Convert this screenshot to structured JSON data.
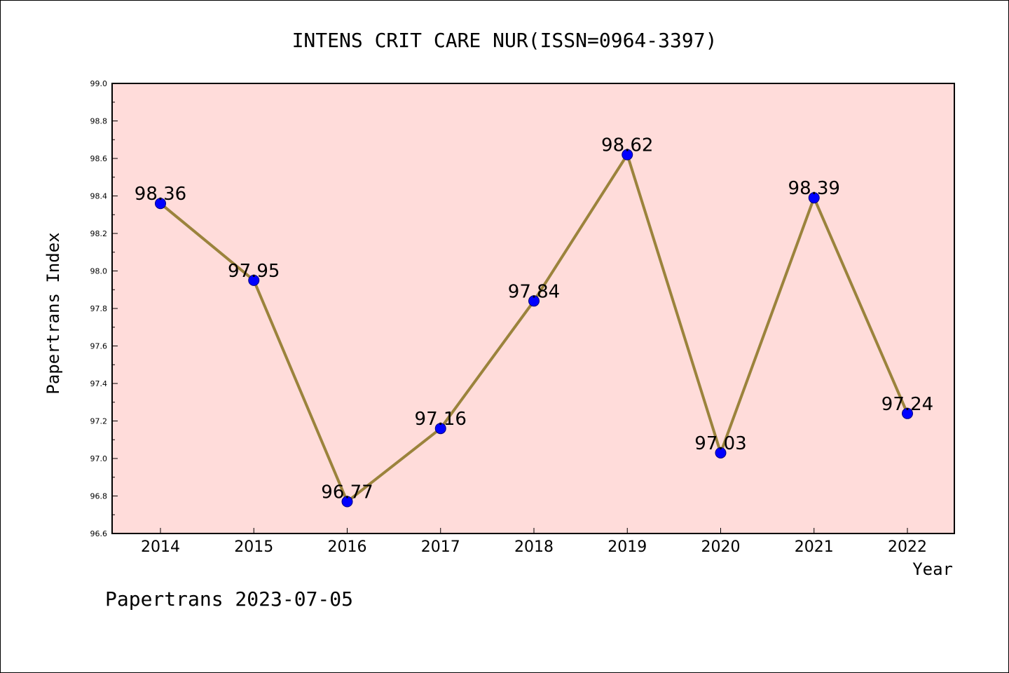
{
  "chart_data": {
    "type": "line",
    "title": "INTENS CRIT CARE NUR(ISSN=0964-3397)",
    "xlabel": "Year",
    "ylabel": "Papertrans Index",
    "categories": [
      "2014",
      "2015",
      "2016",
      "2017",
      "2018",
      "2019",
      "2020",
      "2021",
      "2022"
    ],
    "series": [
      {
        "values": [
          98.36,
          97.95,
          96.77,
          97.16,
          97.84,
          98.62,
          97.03,
          98.39,
          97.24
        ],
        "labels": [
          "98.36",
          "97.95",
          "96.77",
          "97.16",
          "97.84",
          "98.62",
          "97.03",
          "98.39",
          "97.24"
        ]
      }
    ],
    "ylim": [
      96.6,
      99.0
    ],
    "yticks": [
      "96.6",
      "96.8",
      "97.0",
      "97.2",
      "97.4",
      "97.6",
      "97.8",
      "98.0",
      "98.2",
      "98.4",
      "98.6",
      "98.8",
      "99.0"
    ],
    "grid": false,
    "legend": "none",
    "colors": {
      "plot_background": "#ffdcda",
      "line": "#9b833c",
      "marker": "#0000ff",
      "marker_edge": "#000080"
    },
    "footer": "Papertrans 2023-07-05"
  }
}
